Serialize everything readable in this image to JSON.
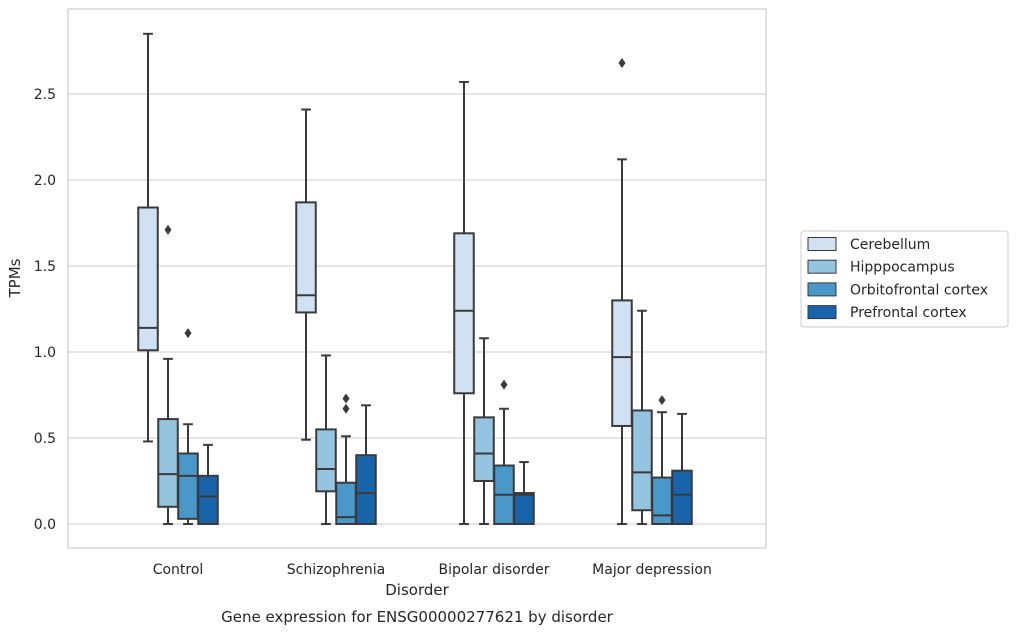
{
  "chart_data": {
    "type": "box",
    "caption": "Gene expression for ENSG00000277621 by disorder",
    "xlabel": "Disorder",
    "ylabel": "TPMs",
    "ylim": [
      -0.14,
      2.99
    ],
    "yticks": [
      0.0,
      0.5,
      1.0,
      1.5,
      2.0,
      2.5
    ],
    "ytick_labels": [
      "0.0",
      "0.5",
      "1.0",
      "1.5",
      "2.0",
      "2.5"
    ],
    "grid": "horizontal",
    "legend_position": "right",
    "categories": [
      "Control",
      "Schizophrenia",
      "Bipolar disorder",
      "Major depression"
    ],
    "series": [
      {
        "name": "Cerebellum",
        "color": "#d0e1f2",
        "boxes": [
          {
            "whisker_low": 0.48,
            "q1": 1.01,
            "median": 1.14,
            "q3": 1.84,
            "whisker_high": 2.85,
            "outliers": []
          },
          {
            "whisker_low": 0.49,
            "q1": 1.23,
            "median": 1.33,
            "q3": 1.87,
            "whisker_high": 2.41,
            "outliers": []
          },
          {
            "whisker_low": 0.0,
            "q1": 0.76,
            "median": 1.24,
            "q3": 1.69,
            "whisker_high": 2.57,
            "outliers": []
          },
          {
            "whisker_low": 0.0,
            "q1": 0.57,
            "median": 0.97,
            "q3": 1.3,
            "whisker_high": 2.12,
            "outliers": [
              2.68
            ]
          }
        ]
      },
      {
        "name": "Hipppocampus",
        "color": "#94c4df",
        "boxes": [
          {
            "whisker_low": 0.0,
            "q1": 0.1,
            "median": 0.29,
            "q3": 0.61,
            "whisker_high": 0.96,
            "outliers": [
              1.71
            ]
          },
          {
            "whisker_low": 0.0,
            "q1": 0.19,
            "median": 0.32,
            "q3": 0.55,
            "whisker_high": 0.98,
            "outliers": []
          },
          {
            "whisker_low": 0.0,
            "q1": 0.25,
            "median": 0.41,
            "q3": 0.62,
            "whisker_high": 1.08,
            "outliers": []
          },
          {
            "whisker_low": 0.0,
            "q1": 0.08,
            "median": 0.3,
            "q3": 0.66,
            "whisker_high": 1.24,
            "outliers": []
          }
        ]
      },
      {
        "name": "Orbitofrontal cortex",
        "color": "#4a98c9",
        "boxes": [
          {
            "whisker_low": 0.0,
            "q1": 0.03,
            "median": 0.28,
            "q3": 0.41,
            "whisker_high": 0.58,
            "outliers": [
              1.11
            ]
          },
          {
            "whisker_low": 0.0,
            "q1": 0.0,
            "median": 0.04,
            "q3": 0.24,
            "whisker_high": 0.51,
            "outliers": [
              0.67,
              0.73
            ]
          },
          {
            "whisker_low": 0.0,
            "q1": 0.0,
            "median": 0.17,
            "q3": 0.34,
            "whisker_high": 0.67,
            "outliers": [
              0.81
            ]
          },
          {
            "whisker_low": 0.0,
            "q1": 0.0,
            "median": 0.05,
            "q3": 0.27,
            "whisker_high": 0.65,
            "outliers": [
              0.72
            ]
          }
        ]
      },
      {
        "name": "Prefrontal cortex",
        "color": "#1764ab",
        "boxes": [
          {
            "whisker_low": 0.0,
            "q1": 0.0,
            "median": 0.16,
            "q3": 0.28,
            "whisker_high": 0.46,
            "outliers": []
          },
          {
            "whisker_low": 0.0,
            "q1": 0.0,
            "median": 0.18,
            "q3": 0.4,
            "whisker_high": 0.69,
            "outliers": []
          },
          {
            "whisker_low": 0.0,
            "q1": 0.0,
            "median": 0.17,
            "q3": 0.18,
            "whisker_high": 0.36,
            "outliers": []
          },
          {
            "whisker_low": 0.0,
            "q1": 0.0,
            "median": 0.17,
            "q3": 0.31,
            "whisker_high": 0.64,
            "outliers": []
          }
        ]
      }
    ]
  }
}
